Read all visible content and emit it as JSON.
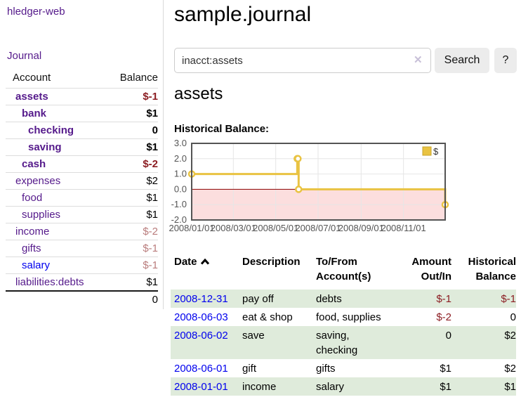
{
  "colors": {
    "link_visited": "#551a8b",
    "link_unvisited": "#0000ee",
    "negative_strong": "#8c1e23",
    "negative_muted": "#b97c7c",
    "row_stripe_green": "#dfebdb",
    "button_gray": "#ececec"
  },
  "brand": "hledger-web",
  "nav": {
    "journal": "Journal"
  },
  "sidebar": {
    "headers": {
      "account": "Account",
      "balance": "Balance"
    },
    "rows": [
      {
        "name": "assets",
        "depth": 1,
        "bold": true,
        "balance": "$-1"
      },
      {
        "name": "bank",
        "depth": 2,
        "bold": true,
        "balance": "$1"
      },
      {
        "name": "checking",
        "depth": 3,
        "bold": true,
        "balance": "0"
      },
      {
        "name": "saving",
        "depth": 3,
        "bold": true,
        "balance": "$1"
      },
      {
        "name": "cash",
        "depth": 2,
        "bold": true,
        "balance": "$-2"
      },
      {
        "name": "expenses",
        "depth": 1,
        "bold": false,
        "balance": "$2"
      },
      {
        "name": "food",
        "depth": 2,
        "bold": false,
        "balance": "$1"
      },
      {
        "name": "supplies",
        "depth": 2,
        "bold": false,
        "balance": "$1"
      },
      {
        "name": "income",
        "depth": 1,
        "bold": false,
        "balance": "$-2"
      },
      {
        "name": "gifts",
        "depth": 2,
        "bold": false,
        "balance": "$-1"
      },
      {
        "name": "salary",
        "depth": 2,
        "bold": false,
        "balance": "$-1",
        "link": "blue"
      },
      {
        "name": "liabilities:debts",
        "depth": 1,
        "bold": false,
        "balance": "$1"
      }
    ],
    "total": "0"
  },
  "main": {
    "title": "sample.journal",
    "search": {
      "value": "inacct:assets",
      "clear": "✕",
      "button": "Search",
      "help": "?"
    },
    "account_heading": "assets",
    "chart_label": "Historical Balance:"
  },
  "chart_data": {
    "type": "line",
    "title": "Historical Balance",
    "steps": true,
    "series": [
      {
        "name": "$",
        "points": [
          {
            "date": "2008-01-01",
            "day": 0,
            "value": 1
          },
          {
            "date": "2008-06-01",
            "day": 152,
            "value": 2
          },
          {
            "date": "2008-06-02",
            "day": 153,
            "value": 2
          },
          {
            "date": "2008-06-03",
            "day": 154,
            "value": 0
          },
          {
            "date": "2008-12-31",
            "day": 365,
            "value": -1
          }
        ]
      }
    ],
    "ylim": [
      -2,
      3
    ],
    "yticks": [
      3,
      2,
      1,
      0,
      -1,
      -2
    ],
    "ytick_labels": [
      "3.0",
      "2.0",
      "1.0",
      "0.0",
      "-1.0",
      "-2.0"
    ],
    "xlim_days": [
      0,
      365
    ],
    "xtick_days": [
      0,
      60,
      121,
      182,
      244,
      305
    ],
    "xticks": [
      "2008/01/01",
      "2008/03/01",
      "2008/05/01",
      "2008/07/01",
      "2008/09/01",
      "2008/11/01"
    ],
    "legend": {
      "label": "$",
      "position": "top-right"
    },
    "grid": true,
    "colors": {
      "line": "#e9c342",
      "marker_fill": "#ffffff",
      "zero_line": "#8b0000",
      "negative_fill": "#fcdede",
      "grid": "#e6e6e6",
      "border": "#545454",
      "tick_text": "#545454"
    }
  },
  "register": {
    "headers": {
      "date": "Date",
      "description": "Description",
      "accounts": "To/From Account(s)",
      "amount": "Amount Out/In",
      "balance": "Historical Balance"
    },
    "rows": [
      {
        "date": "2008-12-31",
        "description": "pay off",
        "accounts": "debts",
        "amount": "$-1",
        "balance": "$-1"
      },
      {
        "date": "2008-06-03",
        "description": "eat & shop",
        "accounts": "food, supplies",
        "amount": "$-2",
        "balance": "0"
      },
      {
        "date": "2008-06-02",
        "description": "save",
        "accounts": "saving, checking",
        "amount": "0",
        "balance": "$2"
      },
      {
        "date": "2008-06-01",
        "description": "gift",
        "accounts": "gifts",
        "amount": "$1",
        "balance": "$2"
      },
      {
        "date": "2008-01-01",
        "description": "income",
        "accounts": "salary",
        "amount": "$1",
        "balance": "$1"
      }
    ]
  }
}
